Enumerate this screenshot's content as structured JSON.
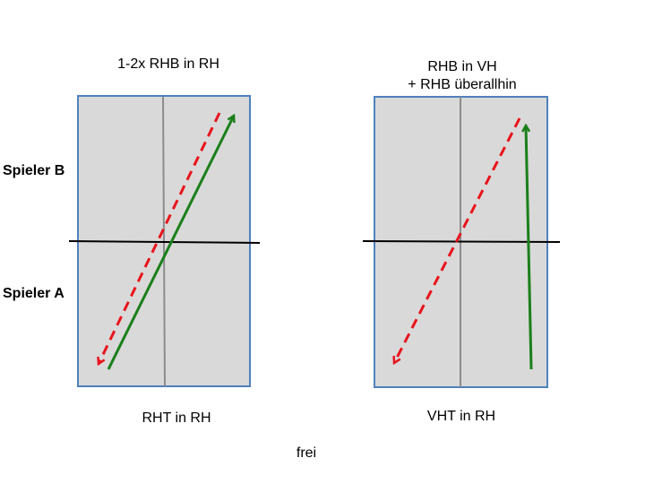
{
  "labels": {
    "top_left": "1-2x RHB in RH",
    "top_right_line1": "RHB in VH",
    "top_right_line2": "+ RHB überallhin",
    "player_b": "Spieler B",
    "player_a": "Spieler A",
    "bottom_left": "RHT in RH",
    "bottom_right": "VHT in RH",
    "footer": "frei"
  },
  "colors": {
    "table_fill": "#d9d9d9",
    "table_border": "#4f81bd",
    "center_line": "#8c8c8c",
    "net": "#000000",
    "serve_arrow": "#1a7f1a",
    "return_arrow": "#e8141c"
  }
}
